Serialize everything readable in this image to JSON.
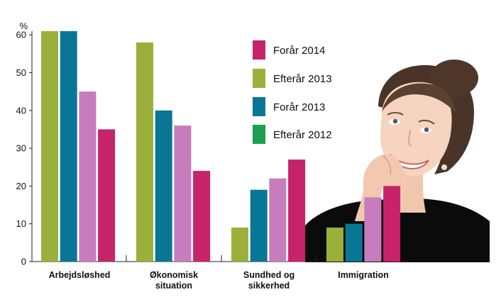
{
  "chart_data": {
    "type": "bar",
    "title": "",
    "xlabel": "",
    "ylabel": "%",
    "ylim": [
      0,
      60
    ],
    "yticks": [
      0,
      10,
      20,
      30,
      40,
      50,
      60
    ],
    "grid": false,
    "legend_position": "top-right",
    "categories": [
      [
        "Arbejdsløshed"
      ],
      [
        "Økonomisk",
        "situation"
      ],
      [
        "Sundhed og",
        "sikkerhed"
      ],
      [
        "Immigration"
      ]
    ],
    "series": [
      {
        "name": "Efterår 2012",
        "color": "#1aa050",
        "values": [
          null,
          null,
          null,
          null
        ]
      },
      {
        "name": "Efterår 2013",
        "color": "#9ab03a",
        "values": [
          61,
          58,
          9,
          9
        ]
      },
      {
        "name": "Forår 2013",
        "color": "#0a7696",
        "values": [
          61,
          40,
          19,
          10
        ]
      },
      {
        "name": "Forår 2014",
        "color": "#c6236a",
        "values": [
          35,
          24,
          27,
          20
        ]
      }
    ],
    "bar_series": [
      {
        "name": "Efterår 2013",
        "color": "#9ab03a",
        "values": [
          61,
          58,
          9,
          9
        ]
      },
      {
        "name": "Forår 2013",
        "color": "#0a7696",
        "values": [
          61,
          40,
          19,
          10
        ]
      },
      {
        "name": "",
        "color": "#c77dbd",
        "values": [
          45,
          36,
          22,
          17
        ]
      },
      {
        "name": "Forår 2014",
        "color": "#c6236a",
        "values": [
          35,
          24,
          27,
          20
        ]
      }
    ],
    "legend": [
      {
        "label": "Forår 2014",
        "color": "#c6236a"
      },
      {
        "label": "Efterår 2013",
        "color": "#9ab03a"
      },
      {
        "label": "Forår 2013",
        "color": "#0a7696"
      },
      {
        "label": "Efterår 2012",
        "color": "#1aa050"
      }
    ]
  },
  "photo": {
    "icon": "smiling-woman-thinking-photo"
  }
}
